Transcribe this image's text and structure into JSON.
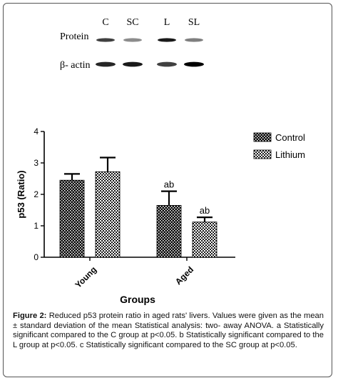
{
  "blot": {
    "lanes": [
      "C",
      "SC",
      "L",
      "SL"
    ],
    "rows": [
      "Protein",
      "β- actin"
    ],
    "protein_intensity": [
      0.75,
      0.45,
      0.9,
      0.5
    ],
    "actin_intensity": [
      0.85,
      0.9,
      0.75,
      1.0
    ]
  },
  "legend": {
    "items": [
      "Control",
      "Lithium"
    ]
  },
  "chart_data": {
    "type": "bar",
    "categories": [
      "Young",
      "Aged"
    ],
    "series": [
      {
        "name": "Control",
        "values": [
          2.45,
          1.65
        ],
        "errors": [
          0.2,
          0.45
        ],
        "labels": [
          "",
          "ab"
        ]
      },
      {
        "name": "Lithium",
        "values": [
          2.72,
          1.12
        ],
        "errors": [
          0.45,
          0.15
        ],
        "labels": [
          "",
          "ab"
        ]
      }
    ],
    "xlabel": "Groups",
    "ylabel": "p53 (Ratio)",
    "ylim": [
      0,
      4
    ],
    "yticks": [
      "0",
      "1",
      "2",
      "3",
      "4"
    ],
    "grid": false,
    "legend_position": "top-right"
  },
  "caption": {
    "figure_label": "Figure 2:",
    "text": " Reduced p53 protein ratio in aged rats' livers. Values were given as the mean ± standard deviation of the mean Statistical analysis: two- away ANOVA. a Statistically significant compared to the C group at p<0.05. b Statistically significant compared to the L group at p<0.05. c Statistically significant compared to the SC group at p<0.05."
  }
}
